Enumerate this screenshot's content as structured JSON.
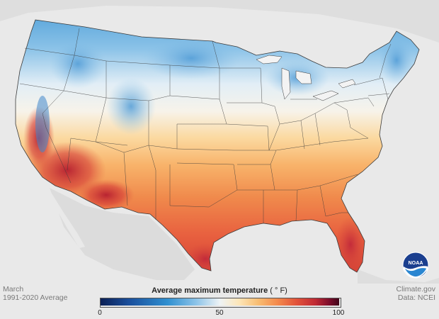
{
  "map": {
    "title": "Average maximum temperature",
    "unit": "( ° F)",
    "period": "March",
    "normal_period": "1991-2020 Average",
    "credit": "Climate.gov",
    "data_source": "Data: NCEI"
  },
  "legend": {
    "min_label": "0",
    "mid_label": "50",
    "max_label": "100",
    "range": [
      0,
      100
    ],
    "colors": [
      "#0b1f55",
      "#1a4f9c",
      "#2f8fd0",
      "#8cc3e8",
      "#e9f1f6",
      "#fde6b8",
      "#f8bd72",
      "#f48a4c",
      "#e2533a",
      "#c02a34",
      "#7a0c2a",
      "#3f0519"
    ]
  },
  "logo": {
    "text": "NOAA",
    "icon": "noaa-logo-icon"
  },
  "colors": {
    "land_background": "#dcdcdc",
    "water": "#f3f3f3",
    "state_border": "#3a3a3a"
  }
}
